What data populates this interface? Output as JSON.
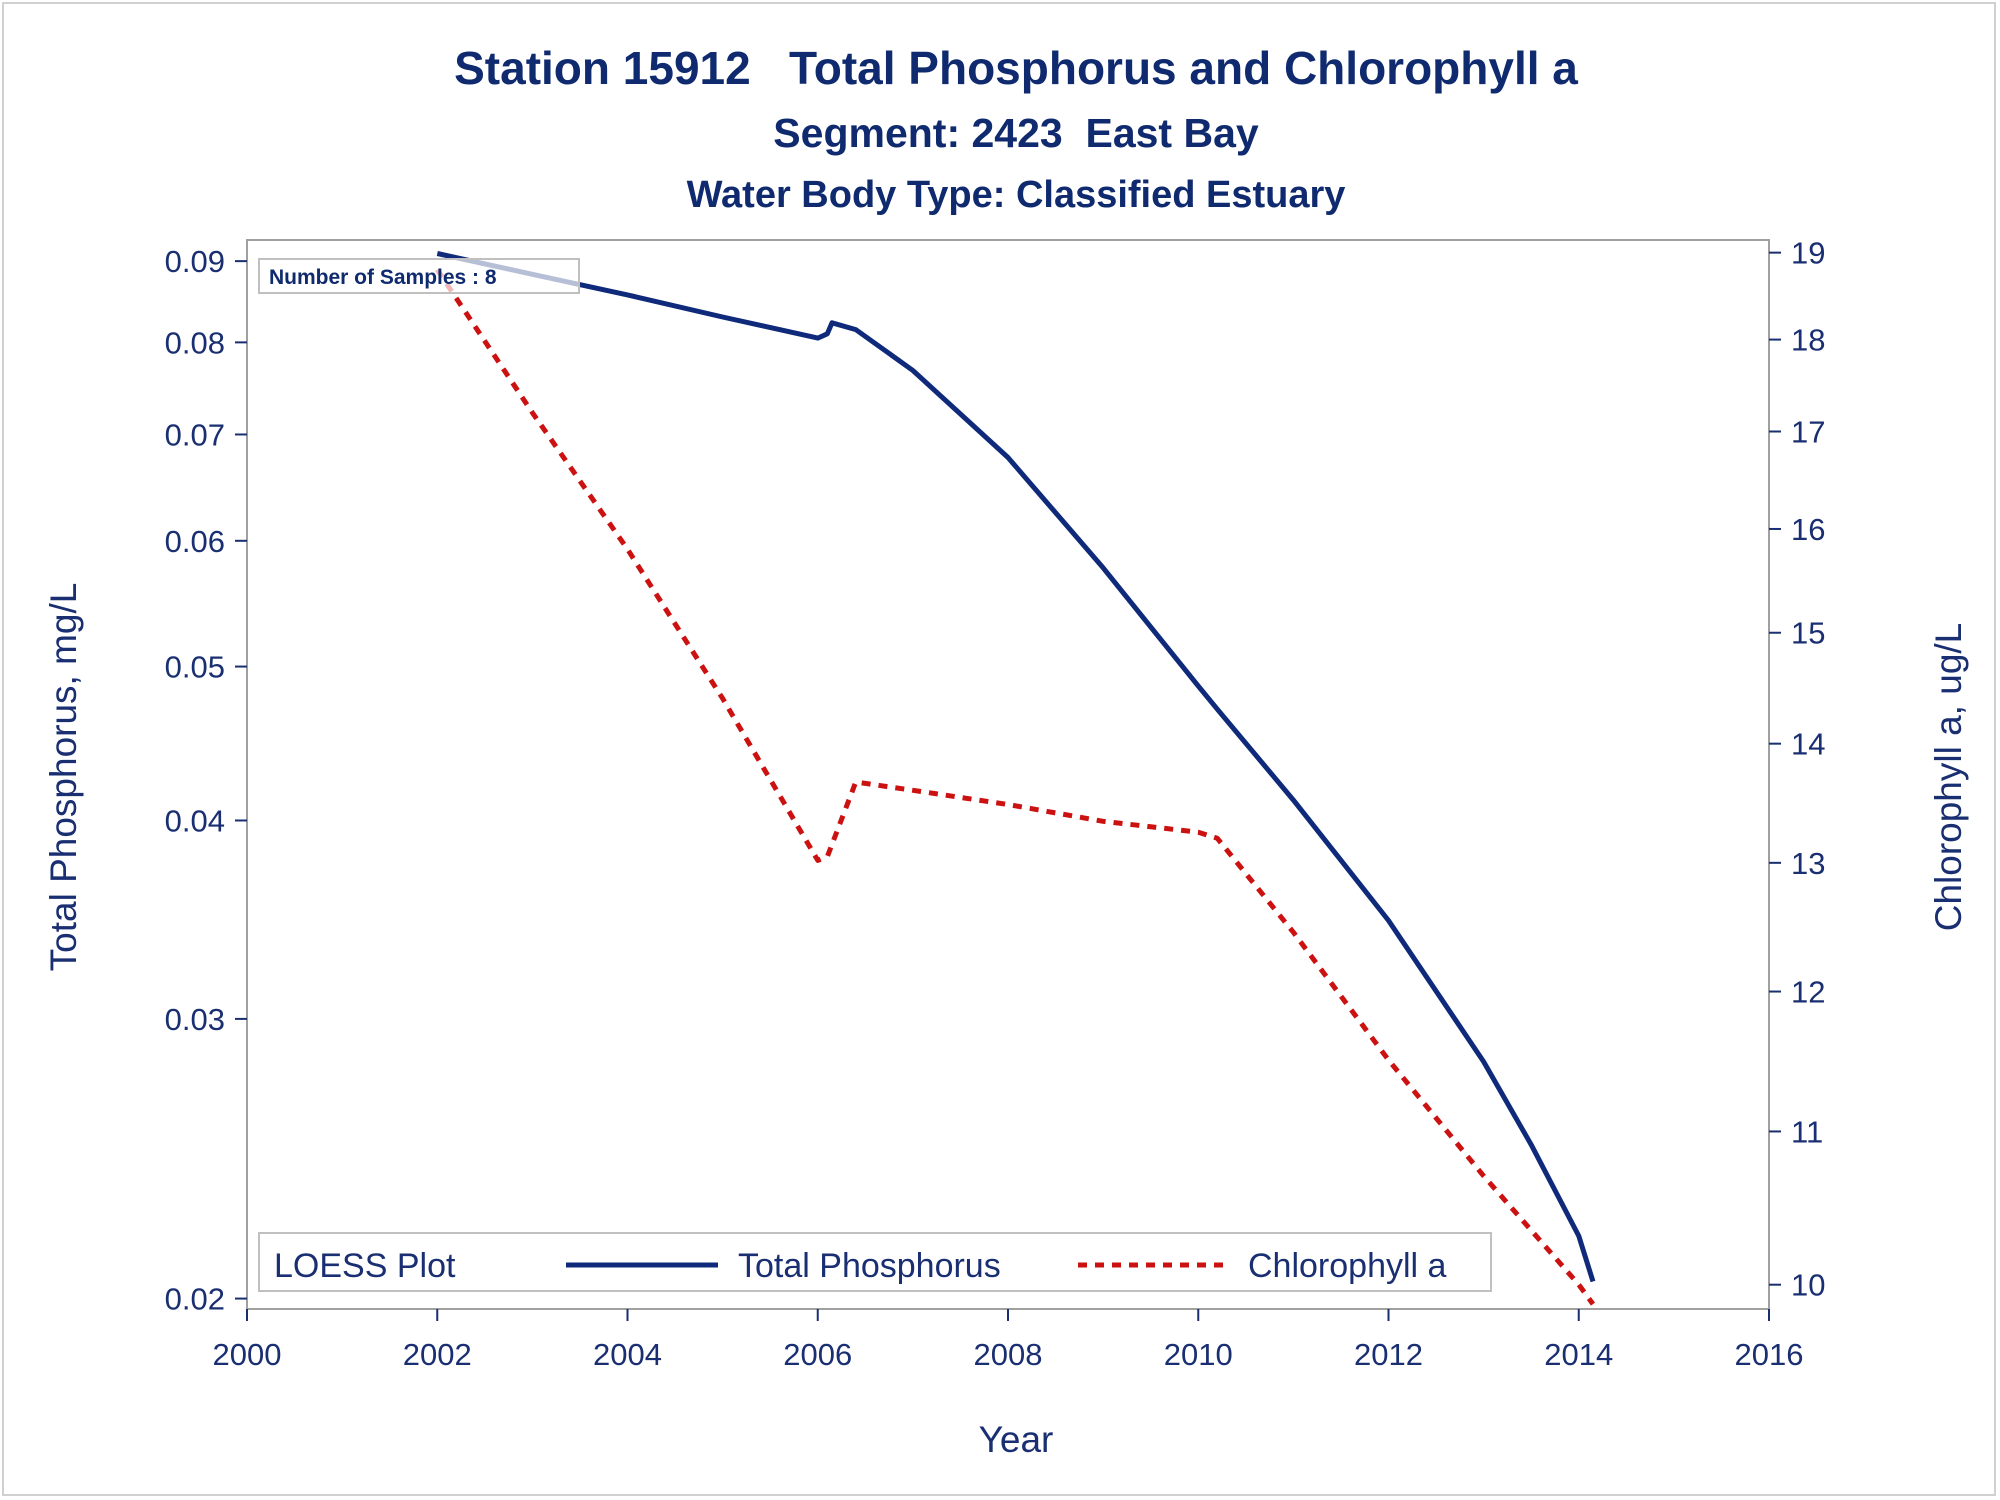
{
  "titles": {
    "line1": "Station 15912   Total Phosphorus and Chlorophyll a",
    "line2": "Segment: 2423  East Bay",
    "line3": "Water Body Type: Classified Estuary"
  },
  "inset_label": "Number of Samples : 8",
  "legend": {
    "title": "LOESS Plot",
    "items": [
      "Total Phosphorus",
      "Chlorophyll a"
    ]
  },
  "colors": {
    "phosphorus": "#0f2a7a",
    "chlorophyll": "#cc1111",
    "text": "#1a2f72",
    "frame": "#a0a0a0"
  },
  "chart_data": {
    "type": "line",
    "xlabel": "Year",
    "ylabel_left": "Total Phosphorus, mg/L",
    "ylabel_right": "Chlorophyll a, ug/L",
    "xlim": [
      2000,
      2016
    ],
    "xticks": [
      "2000",
      "2002",
      "2004",
      "2006",
      "2008",
      "2010",
      "2012",
      "2014",
      "2016"
    ],
    "ylim_left": [
      0.0197,
      0.0928
    ],
    "yscale_left": "log",
    "yticks_left": [
      "0.02",
      "0.03",
      "0.04",
      "0.05",
      "0.06",
      "0.07",
      "0.08",
      "0.09"
    ],
    "ylim_right": [
      9.85,
      19.15
    ],
    "yscale_right": "log",
    "yticks_right": [
      "10",
      "11",
      "12",
      "13",
      "14",
      "15",
      "16",
      "17",
      "18",
      "19"
    ],
    "grid": false,
    "legend_position": "bottom-inside",
    "series": [
      {
        "name": "Total Phosphorus",
        "axis": "left",
        "style": "solid",
        "x": [
          2002.0,
          2003.0,
          2004.0,
          2005.0,
          2006.0,
          2006.1,
          2006.15,
          2006.4,
          2007.0,
          2008.0,
          2009.0,
          2010.0,
          2010.2,
          2011.0,
          2012.0,
          2013.0,
          2013.5,
          2014.0,
          2014.15
        ],
        "y": [
          0.091,
          0.0883,
          0.0857,
          0.083,
          0.0805,
          0.081,
          0.0823,
          0.0815,
          0.0768,
          0.0677,
          0.0577,
          0.0486,
          0.047,
          0.0412,
          0.0346,
          0.0282,
          0.025,
          0.0219,
          0.0205
        ]
      },
      {
        "name": "Chlorophyll a",
        "axis": "right",
        "style": "dashed",
        "x": [
          2002.0,
          2003.0,
          2004.0,
          2005.0,
          2006.0,
          2006.1,
          2006.4,
          2007.0,
          2008.0,
          2009.0,
          2010.0,
          2010.2,
          2011.0,
          2012.0,
          2013.0,
          2014.0,
          2014.15
        ],
        "y": [
          18.8,
          17.2,
          15.8,
          14.4,
          13.02,
          13.05,
          13.67,
          13.6,
          13.48,
          13.34,
          13.25,
          13.2,
          12.45,
          11.5,
          10.7,
          10.0,
          9.88
        ]
      }
    ]
  }
}
